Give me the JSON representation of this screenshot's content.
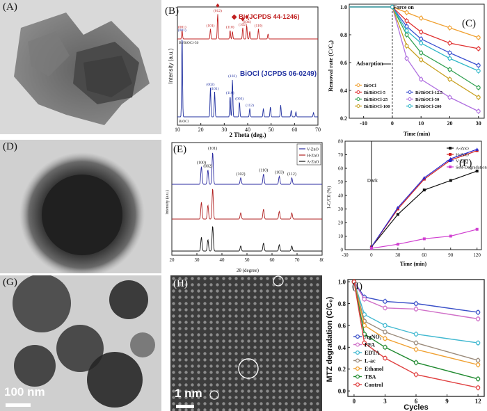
{
  "panels": {
    "A": {
      "label": "(A)"
    },
    "B": {
      "label": "(B)"
    },
    "C": {
      "label": "(C)"
    },
    "D": {
      "label": "(D)"
    },
    "E": {
      "label": "(E)"
    },
    "F": {
      "label": "(F)"
    },
    "G": {
      "label": "(G)",
      "scale_bar": "100 nm"
    },
    "H": {
      "label": "(H)",
      "scale_bar": "1 nm"
    },
    "I": {
      "label": "(I)"
    }
  },
  "chart_data": [
    {
      "id": "B",
      "type": "line",
      "xlabel": "2 Theta (deg.)",
      "ylabel": "Intensity (a.u.)",
      "xlim": [
        10,
        70
      ],
      "xticks": [
        "10",
        "20",
        "30",
        "40",
        "50",
        "60",
        "70"
      ],
      "series_labels": [
        "Bi/BiOCl-50",
        "BiOCl"
      ],
      "ref_bi": "◆ Bi (JCPDS 44-1246)",
      "ref_biocl": "BiOCl (JCPDS 06-0249)",
      "peaks_top": [
        {
          "x": 12.0,
          "h": 0.35,
          "label": "(001)"
        },
        {
          "x": 24.1,
          "h": 0.4,
          "label": "(101)"
        },
        {
          "x": 27.2,
          "h": 1.0,
          "label": "(012)"
        },
        {
          "x": 32.5,
          "h": 0.35,
          "label": "(110)"
        },
        {
          "x": 33.5,
          "h": 0.3,
          "label": ""
        },
        {
          "x": 37.9,
          "h": 0.45,
          "label": "(102)"
        },
        {
          "x": 39.6,
          "h": 0.55,
          "label": "(104)"
        },
        {
          "x": 40.9,
          "h": 0.3,
          "label": ""
        },
        {
          "x": 44.6,
          "h": 0.4,
          "label": "(110)"
        },
        {
          "x": 48.7,
          "h": 0.2,
          "label": ""
        }
      ],
      "peaks_bottom": [
        {
          "x": 12.0,
          "h": 1.0,
          "label": "(001)"
        },
        {
          "x": 24.1,
          "h": 0.35,
          "label": "(002)"
        },
        {
          "x": 25.9,
          "h": 0.3,
          "label": "(101)"
        },
        {
          "x": 32.5,
          "h": 0.25,
          "label": "(110)"
        },
        {
          "x": 33.5,
          "h": 0.45,
          "label": "(102)"
        },
        {
          "x": 36.5,
          "h": 0.18,
          "label": "(003)"
        },
        {
          "x": 40.9,
          "h": 0.1,
          "label": "(112)"
        },
        {
          "x": 46.7,
          "h": 0.1,
          "label": ""
        },
        {
          "x": 49.7,
          "h": 0.12,
          "label": ""
        },
        {
          "x": 54.1,
          "h": 0.14,
          "label": ""
        },
        {
          "x": 58.6,
          "h": 0.08,
          "label": ""
        },
        {
          "x": 60.6,
          "h": 0.06,
          "label": ""
        },
        {
          "x": 68.1,
          "h": 0.05,
          "label": ""
        }
      ]
    },
    {
      "id": "C",
      "type": "line",
      "xlabel": "Time (min)",
      "ylabel": "Removal rate (C/C₀)",
      "xlim": [
        -15,
        32
      ],
      "ylim": [
        0.2,
        1.02
      ],
      "xticks": [
        -10,
        0,
        10,
        20,
        30
      ],
      "yticks": [
        0.2,
        0.4,
        0.6,
        0.8,
        1.0
      ],
      "annotations": {
        "force_on": "Force on",
        "adsorption": "Adsorption"
      },
      "x": [
        -15,
        0,
        5,
        10,
        20,
        30
      ],
      "series": [
        {
          "name": "BiOCl",
          "color": "#f0a030",
          "values": [
            1.0,
            1.0,
            0.96,
            0.92,
            0.85,
            0.78
          ]
        },
        {
          "name": "Bi/BiOCl-5",
          "color": "#e03030",
          "values": [
            1.0,
            1.0,
            0.9,
            0.82,
            0.74,
            0.7
          ]
        },
        {
          "name": "Bi/BiOCl-12.5",
          "color": "#3a50d0",
          "values": [
            1.0,
            1.0,
            0.86,
            0.77,
            0.67,
            0.58
          ]
        },
        {
          "name": "Bi/BiOCl-25",
          "color": "#30a050",
          "values": [
            1.0,
            1.0,
            0.8,
            0.67,
            0.55,
            0.42
          ]
        },
        {
          "name": "Bi/BiOCl-50",
          "color": "#b070e0",
          "values": [
            1.0,
            1.0,
            0.63,
            0.48,
            0.35,
            0.25
          ]
        },
        {
          "name": "Bi/BiOCl-100",
          "color": "#c8a020",
          "values": [
            1.0,
            1.0,
            0.72,
            0.62,
            0.48,
            0.35
          ]
        },
        {
          "name": "Bi/BiOCl-200",
          "color": "#30b8c8",
          "values": [
            1.0,
            1.0,
            0.83,
            0.74,
            0.63,
            0.54
          ]
        }
      ]
    },
    {
      "id": "E",
      "type": "line",
      "xlabel": "2θ (degree)",
      "ylabel": "Intensity (a.u.)",
      "xlim": [
        20,
        80
      ],
      "xticks": [
        "20",
        "30",
        "40",
        "50",
        "60",
        "70",
        "80"
      ],
      "legend": [
        {
          "name": "V-ZnO",
          "color": "#2a2aa0"
        },
        {
          "name": "H-ZnO",
          "color": "#b02020"
        },
        {
          "name": "A-ZnO",
          "color": "#111111"
        }
      ],
      "peaks": [
        {
          "x": 31.8,
          "h": 0.55,
          "label": "(100)"
        },
        {
          "x": 34.4,
          "h": 0.45,
          "label": "(002)"
        },
        {
          "x": 36.3,
          "h": 1.0,
          "label": "(101)"
        },
        {
          "x": 47.5,
          "h": 0.2,
          "label": "(102)"
        },
        {
          "x": 56.6,
          "h": 0.32,
          "label": "(110)"
        },
        {
          "x": 62.9,
          "h": 0.25,
          "label": "(103)"
        },
        {
          "x": 67.9,
          "h": 0.2,
          "label": "(112)"
        }
      ]
    },
    {
      "id": "F",
      "type": "line",
      "xlabel": "Time (min)",
      "ylabel": "1-C/C0 (%)",
      "xlim": [
        -30,
        125
      ],
      "ylim": [
        0,
        80
      ],
      "xticks": [
        -30,
        0,
        30,
        60,
        90,
        120
      ],
      "yticks": [
        0,
        10,
        20,
        30,
        40,
        50,
        60,
        70,
        80
      ],
      "annotation": "Dark",
      "x": [
        -30,
        0,
        30,
        60,
        90,
        120
      ],
      "series": [
        {
          "name": "A-ZnO",
          "color": "#111111",
          "values": [
            0,
            2,
            26,
            44,
            51,
            58
          ]
        },
        {
          "name": "H-ZnO",
          "color": "#d02020",
          "values": [
            0,
            2,
            30,
            52,
            66,
            73
          ]
        },
        {
          "name": "V-ZnO",
          "color": "#2a2ad0",
          "values": [
            0,
            2,
            31,
            53,
            67,
            74
          ]
        },
        {
          "name": "Self-Degradation",
          "color": "#d040d0",
          "values": [
            0,
            1,
            4,
            8,
            10,
            15
          ]
        }
      ]
    },
    {
      "id": "I",
      "type": "line",
      "xlabel": "Cycles",
      "ylabel": "MTZ degradation (C/C₀)",
      "xlim": [
        -0.6,
        12.6
      ],
      "ylim": [
        -0.05,
        1.02
      ],
      "xticks": [
        0,
        3,
        6,
        9,
        12
      ],
      "yticks": [
        0.0,
        0.2,
        0.4,
        0.6,
        0.8,
        1.0
      ],
      "x": [
        0,
        1,
        3,
        6,
        12
      ],
      "series": [
        {
          "name": "AgNO₃",
          "color": "#3a50c8",
          "values": [
            1.0,
            0.86,
            0.82,
            0.8,
            0.72
          ]
        },
        {
          "name": "FFA",
          "color": "#d070c8",
          "values": [
            1.0,
            0.84,
            0.76,
            0.75,
            0.66
          ]
        },
        {
          "name": "EDTA",
          "color": "#40b8d0",
          "values": [
            1.0,
            0.7,
            0.6,
            0.52,
            0.44
          ]
        },
        {
          "name": "L-ac",
          "color": "#9a8a7a",
          "values": [
            1.0,
            0.64,
            0.54,
            0.44,
            0.28
          ]
        },
        {
          "name": "Ethanol",
          "color": "#f0a030",
          "values": [
            1.0,
            0.6,
            0.48,
            0.38,
            0.24
          ]
        },
        {
          "name": "TBA",
          "color": "#208a30",
          "values": [
            1.0,
            0.52,
            0.4,
            0.26,
            0.11
          ]
        },
        {
          "name": "Control",
          "color": "#e04040",
          "values": [
            1.0,
            0.44,
            0.3,
            0.15,
            0.03
          ]
        }
      ]
    }
  ]
}
